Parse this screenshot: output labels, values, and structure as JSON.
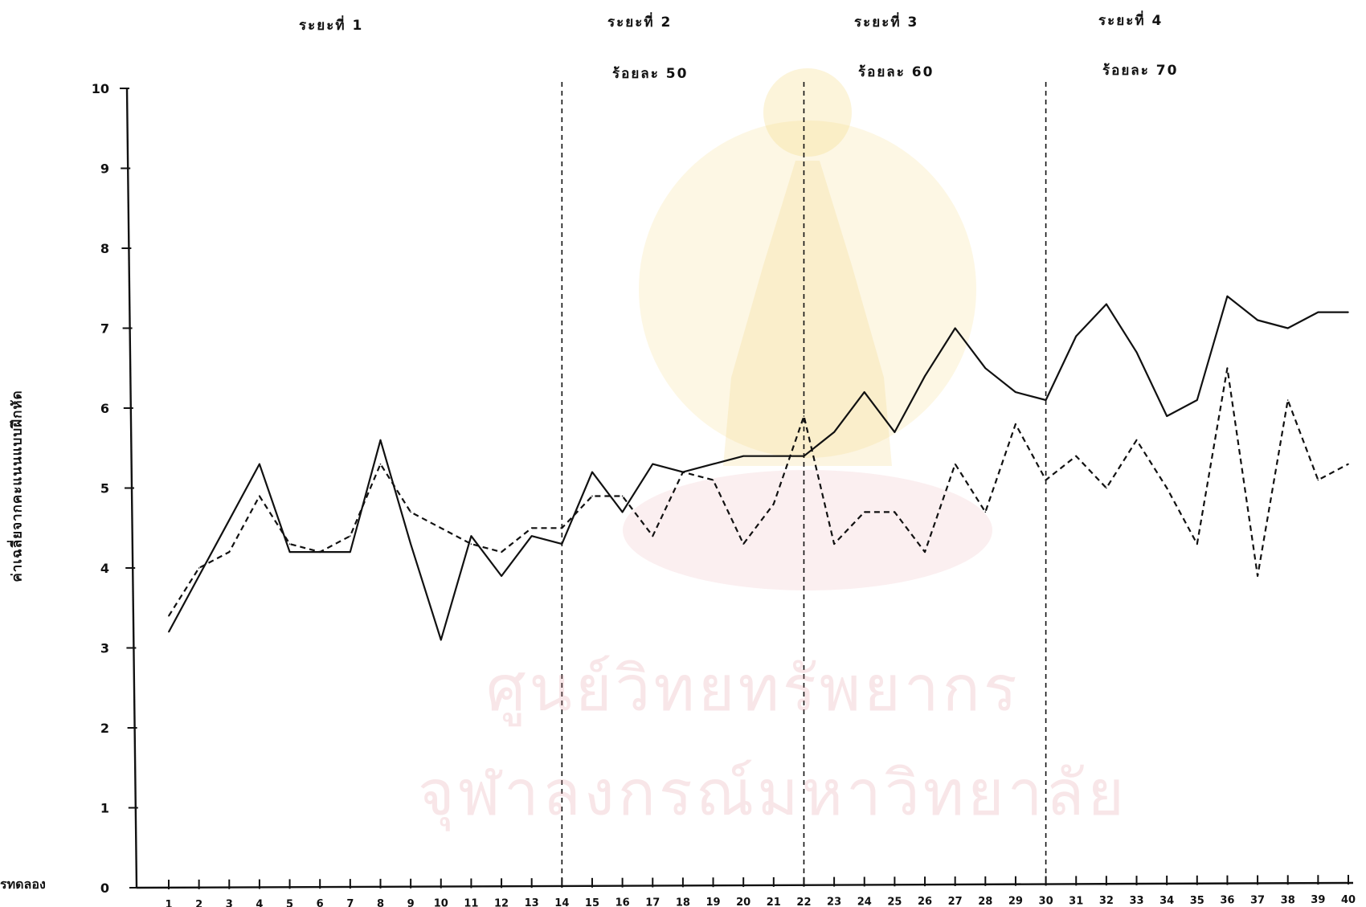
{
  "chart_data": {
    "type": "line",
    "title": "",
    "xlabel": "รทดลอง",
    "ylabel": "ค่าเฉลี่ยจากคะแนนแบบฝึกหัด",
    "ylim": [
      0,
      10
    ],
    "xlim": [
      1,
      40
    ],
    "y_ticks": [
      "0",
      "1",
      "2",
      "3",
      "4",
      "5",
      "6",
      "7",
      "8",
      "9",
      "10"
    ],
    "x_ticks": [
      "1",
      "2",
      "3",
      "4",
      "5",
      "6",
      "7",
      "8",
      "9",
      "10",
      "11",
      "12",
      "13",
      "14",
      "15",
      "16",
      "17",
      "18",
      "19",
      "20",
      "21",
      "22",
      "23",
      "24",
      "25",
      "26",
      "27",
      "28",
      "29",
      "30",
      "31",
      "32",
      "33",
      "34",
      "35",
      "36",
      "37",
      "38",
      "39",
      "40"
    ],
    "phase_boundaries": [
      14,
      22,
      30
    ],
    "phases": [
      {
        "title": "ระยะที่ 1",
        "subtitle": ""
      },
      {
        "title": "ระยะที่ 2",
        "subtitle": "ร้อยละ 50"
      },
      {
        "title": "ระยะที่ 3",
        "subtitle": "ร้อยละ 60"
      },
      {
        "title": "ระยะที่ 4",
        "subtitle": "ร้อยละ 70"
      }
    ],
    "grid": false,
    "series": [
      {
        "style": "solid",
        "values": [
          3.2,
          3.9,
          4.6,
          5.3,
          4.2,
          4.2,
          4.2,
          5.6,
          4.3,
          3.1,
          4.4,
          3.9,
          4.4,
          4.3,
          5.2,
          4.7,
          5.3,
          5.2,
          5.3,
          5.4,
          5.4,
          5.4,
          5.7,
          6.2,
          5.7,
          6.4,
          7.0,
          6.5,
          6.2,
          6.1,
          6.9,
          7.3,
          6.7,
          5.9,
          6.1,
          7.4,
          7.1,
          7.0,
          7.2,
          7.2
        ]
      },
      {
        "style": "dashed",
        "values": [
          3.4,
          4.0,
          4.2,
          4.9,
          4.3,
          4.2,
          4.4,
          5.3,
          4.7,
          4.5,
          4.3,
          4.2,
          4.5,
          4.5,
          4.9,
          4.9,
          4.4,
          5.2,
          5.1,
          4.3,
          4.8,
          5.9,
          4.3,
          4.7,
          4.7,
          4.2,
          5.3,
          4.7,
          5.8,
          5.1,
          5.4,
          5.0,
          5.6,
          5.0,
          4.3,
          6.5,
          3.9,
          6.1,
          5.1,
          5.3
        ]
      }
    ]
  },
  "watermark": {
    "line1": "ศูนย์วิทยทรัพยากร",
    "line2": "จุฬาลงกรณ์มหาวิทยาลัย",
    "color": "#e58c96"
  }
}
